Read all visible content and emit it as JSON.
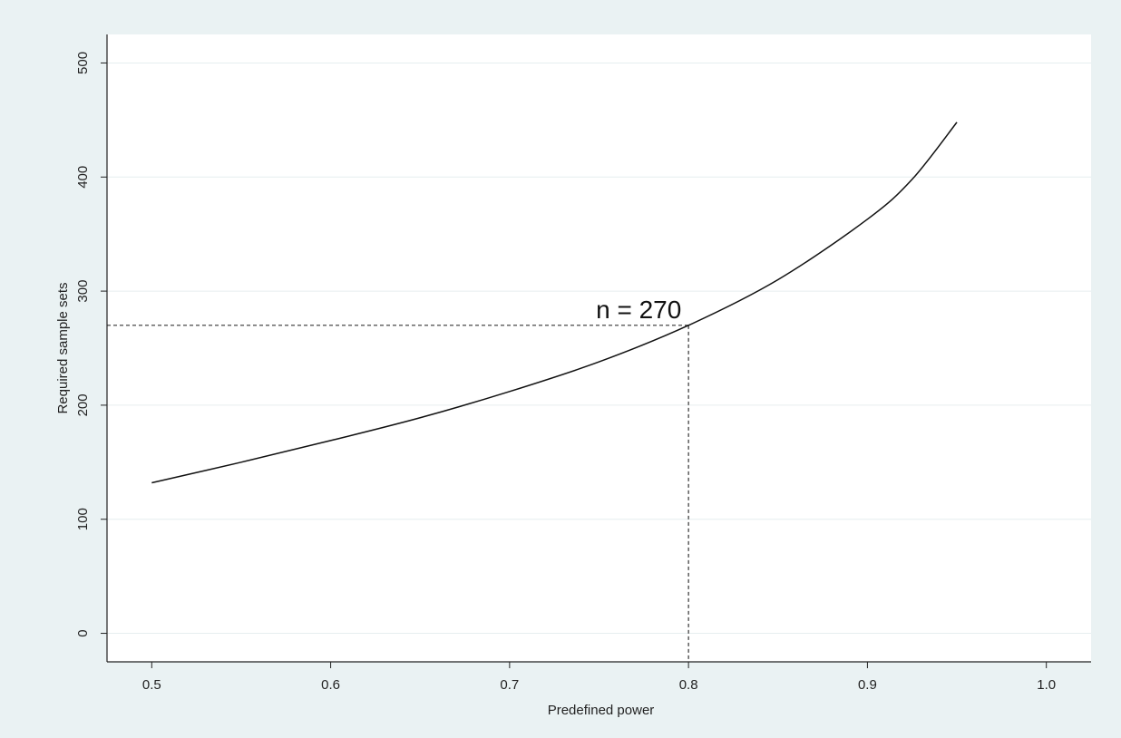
{
  "chart_data": {
    "type": "line",
    "xlabel": "Predefined power",
    "ylabel": "Required sample sets",
    "xlim": [
      0.475,
      1.025
    ],
    "ylim": [
      -25,
      525
    ],
    "xticks": [
      0.5,
      0.6,
      0.7,
      0.8,
      0.9,
      1.0
    ],
    "xtick_labels": [
      "0.5",
      "0.6",
      "0.7",
      "0.8",
      "0.9",
      "1.0"
    ],
    "yticks": [
      0,
      100,
      200,
      300,
      400,
      500
    ],
    "ytick_labels": [
      "0",
      "100",
      "200",
      "300",
      "400",
      "500"
    ],
    "grid": "horizontal",
    "series": [
      {
        "x": [
          0.5,
          0.55,
          0.6,
          0.65,
          0.7,
          0.75,
          0.8,
          0.85,
          0.9,
          0.925,
          0.95
        ],
        "y": [
          132,
          150,
          169,
          189,
          212,
          238,
          270,
          310,
          363,
          398,
          448
        ]
      }
    ],
    "reference": {
      "x": 0.8,
      "y": 270,
      "style": "dashed"
    },
    "annotation": {
      "text": "n = 270",
      "x": 0.8,
      "y": 270
    },
    "colors": {
      "line": "#111111",
      "grid": "#e6eeef",
      "background": "#ffffff",
      "frame": "#eaf2f3"
    }
  }
}
